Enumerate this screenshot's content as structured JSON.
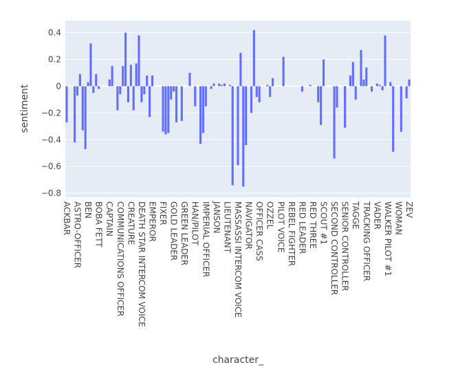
{
  "chart_data": {
    "type": "bar",
    "x_label": "character_",
    "y_label": "sentiment",
    "color": "#636efa",
    "categories": [
      "ACKBAR",
      null,
      null,
      null,
      "ASTRO-OFFICER",
      null,
      null,
      null,
      "BEN",
      null,
      null,
      null,
      "BOBA FETT",
      null,
      null,
      null,
      "CAPTAIN",
      null,
      null,
      null,
      "COMMUNICATIONS OFFICER",
      null,
      null,
      null,
      "CREATURE",
      null,
      null,
      null,
      "DEATH STAR INTERCOM VOICE",
      null,
      null,
      null,
      "EMPEROR",
      null,
      null,
      null,
      "FIXER",
      null,
      null,
      null,
      "GOLD LEADER",
      null,
      null,
      null,
      "GREEN LEADER",
      null,
      null,
      null,
      "HAN/PILOT",
      null,
      null,
      null,
      "IMPERIAL OFFICER",
      null,
      null,
      null,
      "JANSON",
      null,
      null,
      null,
      "LIEUTENANT",
      null,
      null,
      null,
      "MASSASSI INTERCOM VOICE",
      null,
      null,
      null,
      "NAVIGATOR",
      null,
      null,
      null,
      "OFFICER CASS",
      null,
      null,
      null,
      "OZZEL",
      null,
      null,
      null,
      "PILOT VOICE",
      null,
      null,
      null,
      "REBEL FIGHTER",
      null,
      null,
      null,
      "RED LEADER",
      null,
      null,
      null,
      "RED THREE",
      null,
      null,
      null,
      "SCOUT #1",
      null,
      null,
      null,
      "SECOND CONTROLLER",
      null,
      null,
      null,
      "SENIOR CONTROLLER",
      null,
      null,
      null,
      "TAGGE",
      null,
      null,
      null,
      "TRACKING OFFICER",
      null,
      null,
      null,
      "VADER",
      null,
      null,
      null,
      "WALKER PILOT #1",
      null,
      null,
      null,
      "WOMAN",
      null,
      null,
      null,
      "ZEV"
    ],
    "values": [
      -0.27,
      0,
      0,
      -0.42,
      -0.07,
      0.09,
      -0.33,
      -0.47,
      0.03,
      0.32,
      -0.05,
      0.09,
      -0.02,
      0,
      0,
      0,
      0.05,
      0.15,
      0,
      -0.18,
      -0.06,
      0.15,
      0.4,
      -0.12,
      0.16,
      -0.18,
      0.17,
      0.38,
      -0.12,
      -0.06,
      0.08,
      -0.23,
      0.08,
      0,
      0,
      0,
      -0.34,
      -0.36,
      -0.35,
      -0.1,
      -0.04,
      -0.27,
      0,
      -0.26,
      0,
      0,
      0.1,
      0,
      -0.15,
      0,
      -0.43,
      -0.35,
      -0.15,
      0,
      -0.02,
      0.02,
      0,
      0.02,
      0.01,
      0.02,
      0,
      0.01,
      -0.74,
      0,
      -0.59,
      0.25,
      -0.75,
      -0.44,
      0,
      -0.2,
      0.42,
      -0.08,
      -0.12,
      0,
      0,
      0.01,
      -0.08,
      0.06,
      0,
      0,
      0,
      0.22,
      0,
      0,
      0,
      0,
      0,
      0,
      -0.04,
      0,
      0,
      0.01,
      0,
      0,
      -0.12,
      -0.29,
      0.2,
      0,
      0,
      0,
      -0.54,
      -0.16,
      0,
      0,
      -0.31,
      0,
      0.08,
      0.18,
      -0.1,
      0,
      0.27,
      0.05,
      0.14,
      0,
      -0.04,
      0,
      0.02,
      0.01,
      -0.03,
      0.38,
      0,
      0.03,
      -0.49,
      0,
      0,
      -0.34,
      0,
      -0.09,
      0.05
    ],
    "ylim": [
      -0.83,
      0.49
    ],
    "yticks": [
      {
        "value": -0.8,
        "label": "−0.8"
      },
      {
        "value": -0.6,
        "label": "−0.6"
      },
      {
        "value": -0.4,
        "label": "−0.4"
      },
      {
        "value": -0.2,
        "label": "−0.2"
      },
      0,
      0.2,
      0.4
    ],
    "grid": true
  }
}
